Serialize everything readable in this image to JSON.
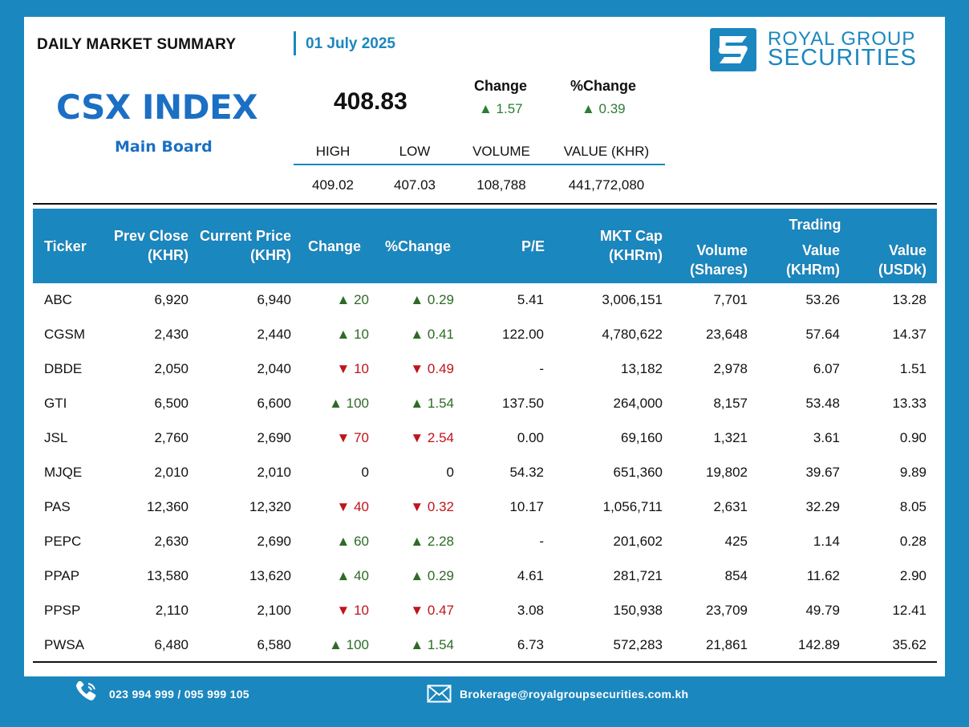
{
  "header": {
    "title": "DAILY MARKET SUMMARY",
    "date": "01 July 2025"
  },
  "logo": {
    "line1": "ROYAL GROUP",
    "line2": "SECURITIES",
    "icon": "rgs-logo-icon"
  },
  "index": {
    "name": "CSX INDEX",
    "board": "Main Board",
    "value": "408.83",
    "change_label": "Change",
    "change_value": "▲ 1.57",
    "pct_label": "%Change",
    "pct_value": "▲ 0.39"
  },
  "stats": {
    "high_label": "HIGH",
    "low_label": "LOW",
    "volume_label": "VOLUME",
    "value_label": "VALUE (KHR)",
    "high": "409.02",
    "low": "407.03",
    "volume": "108,788",
    "value": "441,772,080"
  },
  "table": {
    "headers": {
      "ticker": "Ticker",
      "prev_close_1": "Prev Close",
      "prev_close_2": "(KHR)",
      "current_1": "Current Price",
      "current_2": "(KHR)",
      "change": "Change",
      "pct_change": "%Change",
      "pe": "P/E",
      "mktcap_1": "MKT Cap",
      "mktcap_2": "(KHRm)",
      "volume_1": "Volume",
      "volume_2": "(Shares)",
      "trading": "Trading",
      "value_khr_1": "Value",
      "value_khr_2": "(KHRm)",
      "value_usd_1": "Value",
      "value_usd_2": "(USDk)"
    },
    "rows": [
      {
        "ticker": "ABC",
        "prev": "6,920",
        "current": "6,940",
        "dir": "up",
        "change": "▲ 20",
        "pct": "▲ 0.29",
        "pe": "5.41",
        "mktcap": "3,006,151",
        "volume": "7,701",
        "value_khr": "53.26",
        "value_usd": "13.28"
      },
      {
        "ticker": "CGSM",
        "prev": "2,430",
        "current": "2,440",
        "dir": "up",
        "change": "▲ 10",
        "pct": "▲ 0.41",
        "pe": "122.00",
        "mktcap": "4,780,622",
        "volume": "23,648",
        "value_khr": "57.64",
        "value_usd": "14.37"
      },
      {
        "ticker": "DBDE",
        "prev": "2,050",
        "current": "2,040",
        "dir": "down",
        "change": "▼ 10",
        "pct": "▼ 0.49",
        "pe": "-",
        "mktcap": "13,182",
        "volume": "2,978",
        "value_khr": "6.07",
        "value_usd": "1.51"
      },
      {
        "ticker": "GTI",
        "prev": "6,500",
        "current": "6,600",
        "dir": "up",
        "change": "▲ 100",
        "pct": "▲ 1.54",
        "pe": "137.50",
        "mktcap": "264,000",
        "volume": "8,157",
        "value_khr": "53.48",
        "value_usd": "13.33"
      },
      {
        "ticker": "JSL",
        "prev": "2,760",
        "current": "2,690",
        "dir": "down",
        "change": "▼ 70",
        "pct": "▼ 2.54",
        "pe": "0.00",
        "mktcap": "69,160",
        "volume": "1,321",
        "value_khr": "3.61",
        "value_usd": "0.90"
      },
      {
        "ticker": "MJQE",
        "prev": "2,010",
        "current": "2,010",
        "dir": "neutral",
        "change": "0",
        "pct": "0",
        "pe": "54.32",
        "mktcap": "651,360",
        "volume": "19,802",
        "value_khr": "39.67",
        "value_usd": "9.89"
      },
      {
        "ticker": "PAS",
        "prev": "12,360",
        "current": "12,320",
        "dir": "down",
        "change": "▼ 40",
        "pct": "▼ 0.32",
        "pe": "10.17",
        "mktcap": "1,056,711",
        "volume": "2,631",
        "value_khr": "32.29",
        "value_usd": "8.05"
      },
      {
        "ticker": "PEPC",
        "prev": "2,630",
        "current": "2,690",
        "dir": "up",
        "change": "▲ 60",
        "pct": "▲ 2.28",
        "pe": "-",
        "mktcap": "201,602",
        "volume": "425",
        "value_khr": "1.14",
        "value_usd": "0.28"
      },
      {
        "ticker": "PPAP",
        "prev": "13,580",
        "current": "13,620",
        "dir": "up",
        "change": "▲ 40",
        "pct": "▲ 0.29",
        "pe": "4.61",
        "mktcap": "281,721",
        "volume": "854",
        "value_khr": "11.62",
        "value_usd": "2.90"
      },
      {
        "ticker": "PPSP",
        "prev": "2,110",
        "current": "2,100",
        "dir": "down",
        "change": "▼ 10",
        "pct": "▼ 0.47",
        "pe": "3.08",
        "mktcap": "150,938",
        "volume": "23,709",
        "value_khr": "49.79",
        "value_usd": "12.41"
      },
      {
        "ticker": "PWSA",
        "prev": "6,480",
        "current": "6,580",
        "dir": "up",
        "change": "▲ 100",
        "pct": "▲ 1.54",
        "pe": "6.73",
        "mktcap": "572,283",
        "volume": "21,861",
        "value_khr": "142.89",
        "value_usd": "35.62"
      }
    ]
  },
  "footer": {
    "phone": "023 994 999 / 095 999 105",
    "phone_icon": "phone-icon",
    "email": "Brokerage@royalgroupsecurities.com.kh",
    "email_icon": "mail-icon"
  },
  "colors": {
    "brand_blue": "#1b87bf",
    "index_blue": "#1b6fc4",
    "up_green": "#2e6b25",
    "down_red": "#c0141b"
  }
}
